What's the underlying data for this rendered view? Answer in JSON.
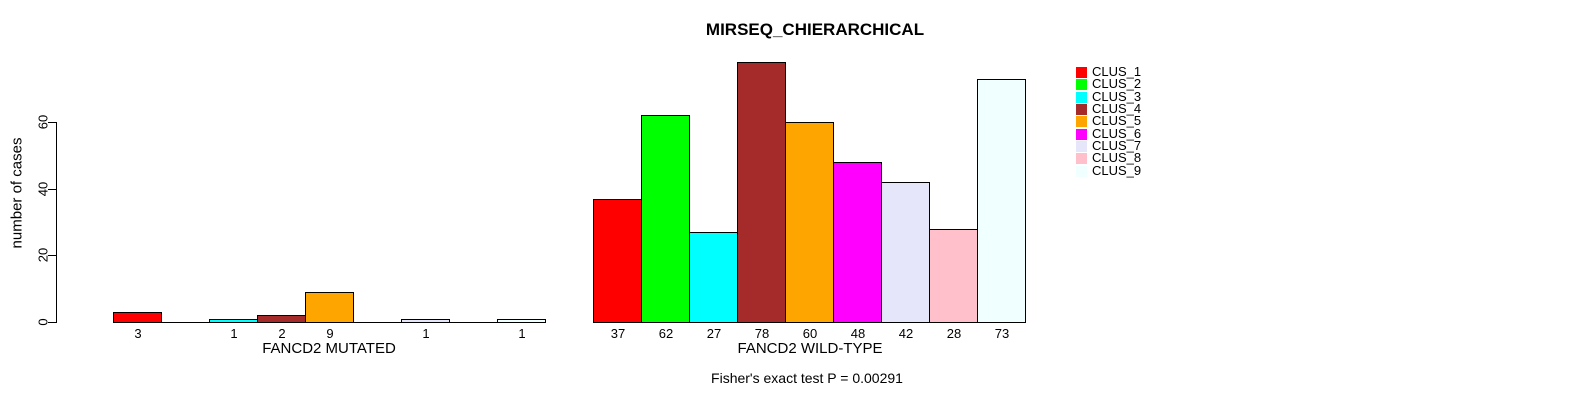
{
  "chart_data": {
    "type": "bar",
    "title": "MIRSEQ_CHIERARCHICAL",
    "ylabel": "number of cases",
    "xlabel": "",
    "yticks": [
      0,
      20,
      40,
      60
    ],
    "ylim": [
      0,
      80
    ],
    "grid": false,
    "legend_position": "right",
    "bar_border_color": "#000000",
    "clusters": [
      {
        "name": "CLUS_1",
        "color": "#FF0000"
      },
      {
        "name": "CLUS_2",
        "color": "#00FF00"
      },
      {
        "name": "CLUS_3",
        "color": "#00FFFF"
      },
      {
        "name": "CLUS_4",
        "color": "#A52A2A"
      },
      {
        "name": "CLUS_5",
        "color": "#FFA500"
      },
      {
        "name": "CLUS_6",
        "color": "#FF00FF"
      },
      {
        "name": "CLUS_7",
        "color": "#E6E6FA"
      },
      {
        "name": "CLUS_8",
        "color": "#FFC0CB"
      },
      {
        "name": "CLUS_9",
        "color": "#F0FFFF"
      }
    ],
    "groups": [
      {
        "id": "mutated",
        "label": "FANCD2 MUTATED",
        "values": [
          3,
          0,
          1,
          2,
          9,
          0,
          1,
          0,
          1
        ]
      },
      {
        "id": "wildtype",
        "label": "FANCD2 WILD-TYPE",
        "values": [
          37,
          62,
          27,
          78,
          60,
          48,
          42,
          28,
          73
        ]
      }
    ],
    "caption": "Fisher's exact test P = 0.00291"
  }
}
